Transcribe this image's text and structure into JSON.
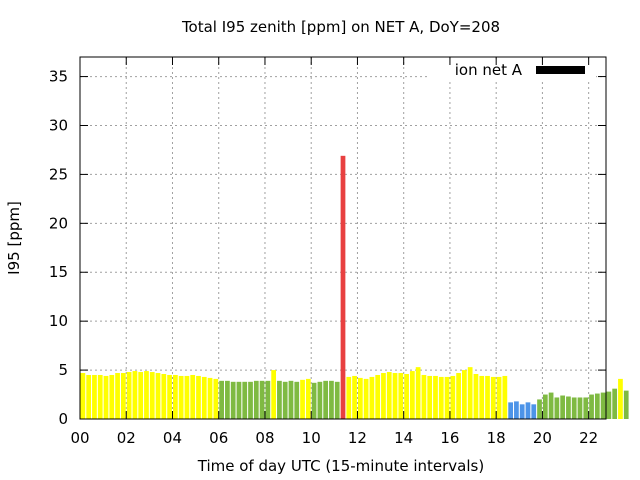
{
  "chart_data": {
    "type": "bar",
    "title": "Total I95 zenith [ppm] on NET A, DoY=208",
    "xlabel": "Time of day UTC (15-minute intervals)",
    "ylabel": "I95 [ppm]",
    "xlim": [
      0,
      22.75
    ],
    "ylim": [
      0,
      37
    ],
    "xticks": [
      "00",
      "02",
      "04",
      "06",
      "08",
      "10",
      "12",
      "14",
      "16",
      "18",
      "20",
      "22"
    ],
    "yticks": [
      "0",
      "5",
      "10",
      "15",
      "20",
      "25",
      "30",
      "35"
    ],
    "grid": true,
    "interval_hours": 0.25,
    "legend": {
      "label": "ion net A",
      "color": "#000000",
      "placement": "top-right"
    },
    "colors": {
      "yellow": "#ffff00",
      "green": "#7fba42",
      "blue": "#4d94e8",
      "red": "#e84040"
    },
    "values": [
      4.7,
      4.5,
      4.5,
      4.5,
      4.4,
      4.5,
      4.7,
      4.7,
      4.8,
      4.9,
      4.8,
      4.9,
      4.8,
      4.7,
      4.6,
      4.5,
      4.5,
      4.4,
      4.4,
      4.5,
      4.4,
      4.3,
      4.2,
      4.1,
      3.9,
      3.9,
      3.8,
      3.8,
      3.8,
      3.8,
      3.9,
      3.9,
      3.9,
      5.0,
      3.9,
      3.8,
      3.9,
      3.8,
      4.0,
      4.1,
      3.7,
      3.8,
      3.9,
      3.9,
      3.8,
      26.9,
      4.3,
      4.4,
      4.2,
      4.1,
      4.3,
      4.5,
      4.7,
      4.8,
      4.7,
      4.7,
      4.6,
      4.9,
      5.3,
      4.5,
      4.4,
      4.4,
      4.3,
      4.3,
      4.4,
      4.7,
      5.0,
      5.3,
      4.6,
      4.4,
      4.4,
      4.3,
      4.3,
      4.4,
      1.7,
      1.8,
      1.5,
      1.7,
      1.5,
      2.0,
      2.5,
      2.7,
      2.2,
      2.4,
      2.3,
      2.2,
      2.2,
      2.2,
      2.5,
      2.6,
      2.7,
      2.8,
      3.1,
      4.1,
      2.9
    ],
    "bar_colors": [
      "yellow",
      "yellow",
      "yellow",
      "yellow",
      "yellow",
      "yellow",
      "yellow",
      "yellow",
      "yellow",
      "yellow",
      "yellow",
      "yellow",
      "yellow",
      "yellow",
      "yellow",
      "yellow",
      "yellow",
      "yellow",
      "yellow",
      "yellow",
      "yellow",
      "yellow",
      "yellow",
      "yellow",
      "green",
      "green",
      "green",
      "green",
      "green",
      "green",
      "green",
      "green",
      "green",
      "yellow",
      "green",
      "green",
      "green",
      "green",
      "yellow",
      "yellow",
      "green",
      "green",
      "green",
      "green",
      "green",
      "red",
      "yellow",
      "yellow",
      "yellow",
      "yellow",
      "yellow",
      "yellow",
      "yellow",
      "yellow",
      "yellow",
      "yellow",
      "yellow",
      "yellow",
      "yellow",
      "yellow",
      "yellow",
      "yellow",
      "yellow",
      "yellow",
      "yellow",
      "yellow",
      "yellow",
      "yellow",
      "yellow",
      "yellow",
      "yellow",
      "yellow",
      "yellow",
      "yellow",
      "blue",
      "blue",
      "blue",
      "blue",
      "blue",
      "green",
      "green",
      "green",
      "green",
      "green",
      "green",
      "green",
      "green",
      "green",
      "green",
      "green",
      "green",
      "green",
      "green",
      "yellow",
      "green"
    ]
  }
}
